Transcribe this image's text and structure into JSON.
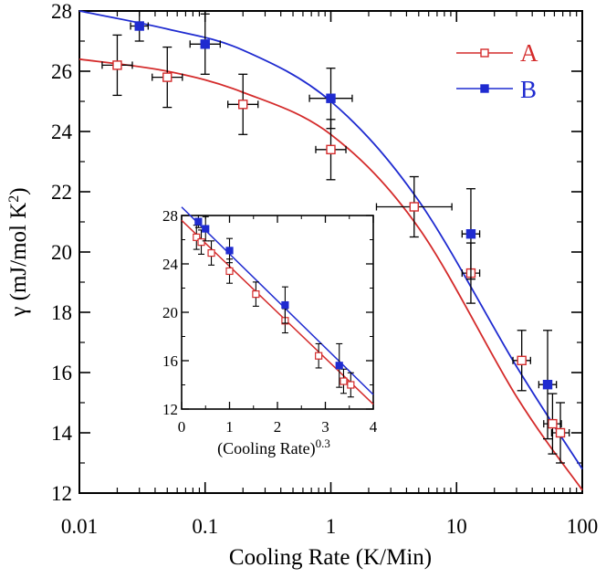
{
  "colors": {
    "A": "#d42b2b",
    "B": "#1f2bd0",
    "axis": "#000000"
  },
  "chart_data": [
    {
      "type": "scatter",
      "role": "main",
      "xscale": "log",
      "xlim": [
        0.01,
        100
      ],
      "ylim": [
        12,
        28
      ],
      "x_ticks": [
        0.01,
        0.1,
        1,
        10,
        100
      ],
      "x_tick_labels": [
        "0.01",
        "0.1",
        "1",
        "10",
        "100"
      ],
      "y_ticks": [
        12,
        14,
        16,
        18,
        20,
        22,
        24,
        26,
        28
      ],
      "y_tick_labels": [
        "12",
        "14",
        "16",
        "18",
        "20",
        "22",
        "24",
        "26",
        "28"
      ],
      "xlabel": "Cooling Rate (K/Min)",
      "ylabel": {
        "prefix": "γ (mJ/mol K",
        "sup": "2",
        "suffix": ")"
      },
      "legend": {
        "position": "top-right",
        "entries": [
          {
            "name": "A",
            "marker": "open-square"
          },
          {
            "name": "B",
            "marker": "filled-square"
          }
        ]
      },
      "series": [
        {
          "name": "A",
          "marker": "open-square",
          "points": [
            {
              "x": 0.02,
              "y": 26.2,
              "yerr": 1.0,
              "xerr": 0.12
            },
            {
              "x": 0.05,
              "y": 25.8,
              "yerr": 1.0,
              "xerr": 0.12
            },
            {
              "x": 0.2,
              "y": 24.9,
              "yerr": 1.0,
              "xerr": 0.12
            },
            {
              "x": 1.0,
              "y": 23.4,
              "yerr": 1.0,
              "xerr": 0.12
            },
            {
              "x": 4.6,
              "y": 21.5,
              "yerr": 1.0,
              "xerr": 0.3
            },
            {
              "x": 13,
              "y": 19.3,
              "yerr": 1.0,
              "xerr": 0.07
            },
            {
              "x": 33,
              "y": 16.4,
              "yerr": 1.0,
              "xerr": 0.07
            },
            {
              "x": 58,
              "y": 14.3,
              "yerr": 1.0,
              "xerr": 0.07
            },
            {
              "x": 67,
              "y": 14.0,
              "yerr": 1.0,
              "xerr": 0.07
            }
          ],
          "fit": [
            26.4,
            26.0,
            25.3,
            23.9,
            20.8,
            15.2,
            12.1
          ],
          "fit_x": [
            0.01,
            0.05,
            0.2,
            1,
            5,
            30,
            100
          ]
        },
        {
          "name": "B",
          "marker": "filled-square",
          "points": [
            {
              "x": 0.03,
              "y": 27.5,
              "yerr": 0.5,
              "xerr": 0.07
            },
            {
              "x": 0.1,
              "y": 26.9,
              "yerr": 1.0,
              "xerr": 0.12
            },
            {
              "x": 1.0,
              "y": 25.1,
              "yerr": 1.0,
              "xerr": 0.17
            },
            {
              "x": 13,
              "y": 20.6,
              "yerr": 1.5,
              "xerr": 0.07
            },
            {
              "x": 53,
              "y": 15.6,
              "yerr": 1.8,
              "xerr": 0.07
            }
          ],
          "fit": [
            28.0,
            27.4,
            26.7,
            25.0,
            21.7,
            16.2,
            12.8
          ],
          "fit_x": [
            0.01,
            0.05,
            0.2,
            1,
            5,
            30,
            100
          ]
        }
      ]
    },
    {
      "type": "scatter",
      "role": "inset",
      "xlim": [
        0,
        4
      ],
      "ylim": [
        12,
        28
      ],
      "x_ticks": [
        0,
        1,
        2,
        3,
        4
      ],
      "x_tick_labels": [
        "0",
        "1",
        "2",
        "3",
        "4"
      ],
      "y_ticks": [
        12,
        16,
        20,
        24,
        28
      ],
      "y_tick_labels": [
        "12",
        "16",
        "20",
        "24",
        "28"
      ],
      "xlabel": {
        "text": "(Cooling Rate)",
        "sup": "0.3"
      },
      "ylabel": "",
      "series": [
        {
          "name": "A",
          "marker": "open-square",
          "points": [
            {
              "x": 0.31,
              "y": 26.2,
              "yerr": 1.0
            },
            {
              "x": 0.41,
              "y": 25.8,
              "yerr": 1.0
            },
            {
              "x": 0.62,
              "y": 24.9,
              "yerr": 1.0
            },
            {
              "x": 1.0,
              "y": 23.4,
              "yerr": 1.0
            },
            {
              "x": 1.55,
              "y": 21.5,
              "yerr": 1.0
            },
            {
              "x": 2.16,
              "y": 19.3,
              "yerr": 1.0
            },
            {
              "x": 2.86,
              "y": 16.4,
              "yerr": 1.0
            },
            {
              "x": 3.38,
              "y": 14.3,
              "yerr": 1.0
            },
            {
              "x": 3.53,
              "y": 14.0,
              "yerr": 1.0
            }
          ],
          "fit_line": [
            [
              0,
              27.6
            ],
            [
              4,
              12.4
            ]
          ]
        },
        {
          "name": "B",
          "marker": "filled-square",
          "points": [
            {
              "x": 0.35,
              "y": 27.5,
              "yerr": 0.5
            },
            {
              "x": 0.5,
              "y": 26.9,
              "yerr": 1.0
            },
            {
              "x": 1.0,
              "y": 25.1,
              "yerr": 1.0
            },
            {
              "x": 2.16,
              "y": 20.6,
              "yerr": 1.5
            },
            {
              "x": 3.29,
              "y": 15.6,
              "yerr": 1.8
            }
          ],
          "fit_line": [
            [
              0,
              28.7
            ],
            [
              4,
              13.2
            ]
          ]
        }
      ]
    }
  ]
}
